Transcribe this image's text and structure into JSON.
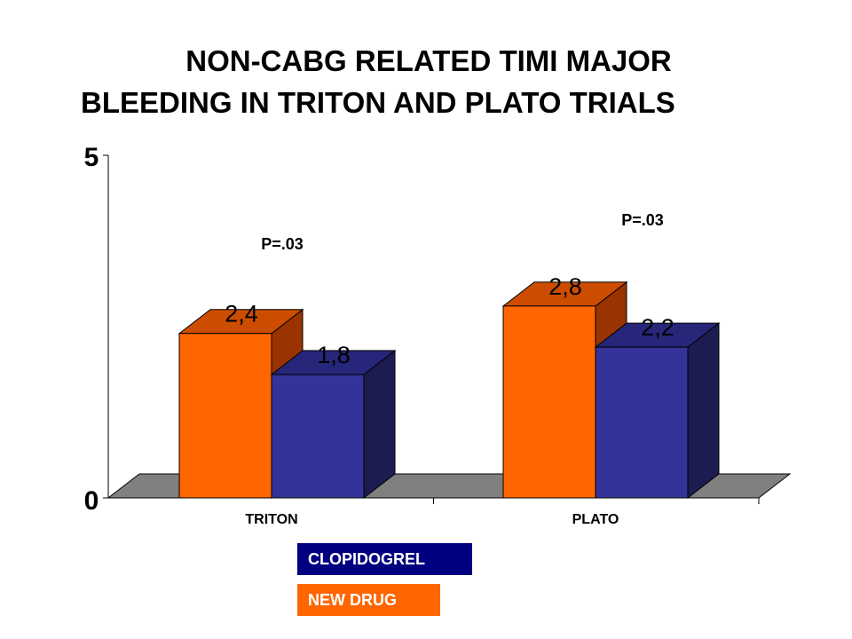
{
  "title_line1": "NON-CABG RELATED TIMI MAJOR",
  "title_line2": "BLEEDING IN TRITON AND PLATO TRIALS",
  "legend": [
    {
      "label": "CLOPIDOGREL",
      "color": "#000080"
    },
    {
      "label": "NEW DRUG",
      "color": "#FF6600"
    }
  ],
  "chart_data": {
    "type": "bar",
    "categories": [
      "TRITON",
      "PLATO"
    ],
    "series": [
      {
        "name": "NEW DRUG",
        "values": [
          2.4,
          2.8
        ],
        "labels": [
          "2,4",
          "2,8"
        ],
        "color": "#FF6600",
        "side_color": "#993300",
        "top_color": "#CC4D00"
      },
      {
        "name": "CLOPIDOGREL",
        "values": [
          1.8,
          2.2
        ],
        "labels": [
          "1,8",
          "2,2"
        ],
        "color": "#333399",
        "side_color": "#1C1C50",
        "top_color": "#26267A"
      }
    ],
    "ylim": [
      0,
      5
    ],
    "yticks": [
      "0",
      "5"
    ],
    "annotations": [
      "P=.03",
      "P=.03"
    ],
    "floor_color": "#808080",
    "grid": false
  }
}
